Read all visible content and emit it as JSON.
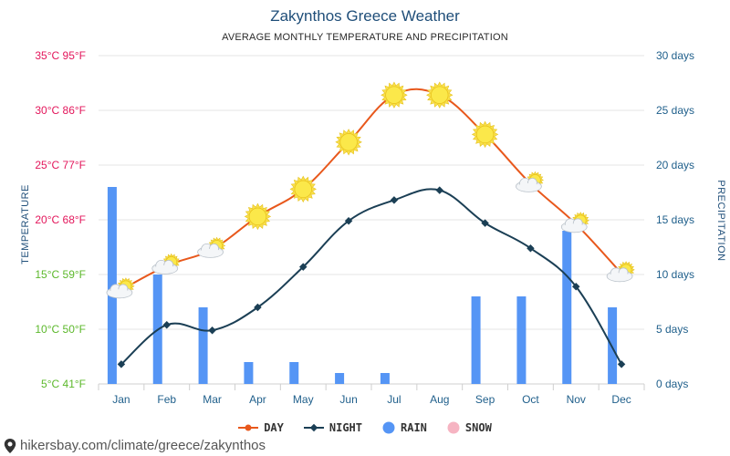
{
  "header": {
    "title": "Zakynthos Greece Weather",
    "subtitle": "AVERAGE MONTHLY TEMPERATURE AND PRECIPITATION"
  },
  "left_axis_title": "TEMPERATURE",
  "right_axis_title": "PRECIPITATION",
  "legend": {
    "day": "DAY",
    "night": "NIGHT",
    "rain": "RAIN",
    "snow": "SNOW"
  },
  "footer": {
    "url": "hikersbay.com/climate/greece/zakynthos"
  },
  "colors": {
    "day": "#e8581c",
    "night": "#1b3f55",
    "rain": "#5595f5",
    "snow": "#f6b4c2",
    "title": "#1f4e79",
    "right_axis": "#1f5f8b"
  },
  "chart_data": {
    "type": "line",
    "categories": [
      "Jan",
      "Feb",
      "Mar",
      "Apr",
      "May",
      "Jun",
      "Jul",
      "Aug",
      "Sep",
      "Oct",
      "Nov",
      "Dec"
    ],
    "y_left": {
      "ylim": [
        5,
        35
      ],
      "ticks": [
        {
          "value": 35,
          "label": "35°C 95°F",
          "color": "#e3165b"
        },
        {
          "value": 30,
          "label": "30°C 86°F",
          "color": "#e3165b"
        },
        {
          "value": 25,
          "label": "25°C 77°F",
          "color": "#e3165b"
        },
        {
          "value": 20,
          "label": "20°C 68°F",
          "color": "#e3165b"
        },
        {
          "value": 15,
          "label": "15°C 59°F",
          "color": "#5cb82b"
        },
        {
          "value": 10,
          "label": "10°C 50°F",
          "color": "#5cb82b"
        },
        {
          "value": 5,
          "label": "5°C 41°F",
          "color": "#5cb82b"
        }
      ]
    },
    "y_right": {
      "ylim": [
        0,
        30
      ],
      "ticks": [
        {
          "value": 30,
          "label": "30 days"
        },
        {
          "value": 25,
          "label": "25 days"
        },
        {
          "value": 20,
          "label": "20 days"
        },
        {
          "value": 15,
          "label": "15 days"
        },
        {
          "value": 10,
          "label": "10 days"
        },
        {
          "value": 5,
          "label": "5 days"
        },
        {
          "value": 0,
          "label": "0 days"
        }
      ]
    },
    "series": [
      {
        "name": "DAY",
        "axis": "left",
        "values": [
          13.6,
          15.8,
          17.3,
          20.3,
          22.8,
          27.1,
          31.4,
          31.4,
          27.8,
          23.3,
          19.6,
          15.1
        ],
        "icons": [
          "cloud-sun-icon",
          "cloud-sun-icon",
          "cloud-sun-icon",
          "sun-icon",
          "sun-icon",
          "sun-icon",
          "sun-icon",
          "sun-icon",
          "sun-icon",
          "cloud-sun-icon",
          "cloud-sun-icon",
          "cloud-sun-icon"
        ]
      },
      {
        "name": "NIGHT",
        "axis": "left",
        "values": [
          6.8,
          10.4,
          9.9,
          12.0,
          15.7,
          19.9,
          21.8,
          22.7,
          19.7,
          17.4,
          13.9,
          6.8
        ]
      },
      {
        "name": "RAIN",
        "axis": "right",
        "type": "bar",
        "values": [
          18,
          10,
          7,
          2,
          2,
          1,
          1,
          0,
          8,
          8,
          14,
          7
        ]
      },
      {
        "name": "SNOW",
        "axis": "right",
        "type": "bar",
        "values": [
          0,
          0,
          0,
          0,
          0,
          0,
          0,
          0,
          0,
          0,
          0,
          0
        ]
      }
    ]
  }
}
